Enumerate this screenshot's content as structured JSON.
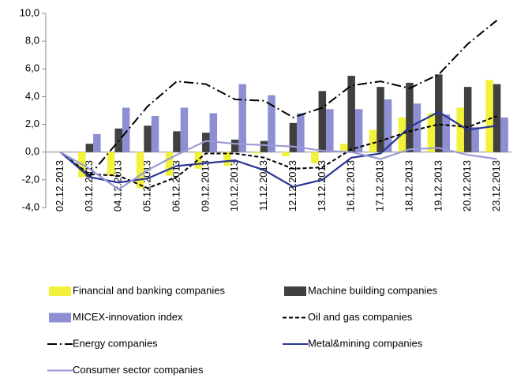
{
  "chart_data": {
    "type": "bar_line",
    "categories": [
      "02.12.2013",
      "03.12.2013",
      "04.12.2013",
      "05.12.2013",
      "06.12.2013",
      "09.12.2013",
      "10.12.2013",
      "11.12.2013",
      "12.12.2013",
      "13.12.2013",
      "16.12.2013",
      "17.12.2013",
      "18.12.2013",
      "19.12.2013",
      "20.12.2013",
      "23.12.2013"
    ],
    "ylim": [
      -4,
      10
    ],
    "yticks": [
      {
        "value": -4,
        "label": "-4,0"
      },
      {
        "value": -2,
        "label": "-2,0"
      },
      {
        "value": 0,
        "label": "0,0"
      },
      {
        "value": 2,
        "label": "2,0"
      },
      {
        "value": 4,
        "label": "4,0"
      },
      {
        "value": 6,
        "label": "6,0"
      },
      {
        "value": 8,
        "label": "8,0"
      },
      {
        "value": 10,
        "label": "10,0"
      }
    ],
    "series": [
      {
        "name": "Financial and banking companies",
        "kind": "bar",
        "color": "#f2f23a",
        "values": [
          0,
          -1.8,
          -1.7,
          -2.6,
          -1.7,
          -1.2,
          -1.0,
          -0.1,
          -0.3,
          -0.8,
          0.6,
          1.6,
          2.5,
          2.8,
          3.2,
          5.2
        ]
      },
      {
        "name": "Machine building companies",
        "kind": "bar",
        "color": "#404040",
        "values": [
          0,
          0.6,
          1.7,
          1.9,
          1.5,
          1.4,
          0.9,
          0.8,
          2.1,
          4.4,
          5.5,
          4.7,
          5.0,
          5.6,
          4.7,
          4.9
        ]
      },
      {
        "name": "MICEX-innovation index",
        "kind": "bar",
        "color": "#8d8fd2",
        "values": [
          0,
          1.3,
          3.2,
          2.6,
          3.2,
          2.8,
          4.9,
          4.1,
          2.8,
          3.1,
          3.1,
          3.8,
          3.5,
          2.7,
          1.8,
          2.5
        ]
      },
      {
        "name": "Oil and gas companies",
        "kind": "line",
        "style": "dashed",
        "color": "#000000",
        "values": [
          0,
          -1.6,
          -1.7,
          -2.6,
          -1.8,
          -0.1,
          -0.1,
          -0.4,
          -1.2,
          -1.1,
          0.2,
          0.8,
          1.5,
          2.0,
          1.8,
          2.6
        ]
      },
      {
        "name": "Energy companies",
        "kind": "line",
        "style": "dashdot",
        "color": "#000000",
        "values": [
          0,
          -1.7,
          0.8,
          3.3,
          5.1,
          4.9,
          3.8,
          3.7,
          2.5,
          3.2,
          4.8,
          5.1,
          4.6,
          5.6,
          7.8,
          9.5
        ]
      },
      {
        "name": "Metal&mining companies",
        "kind": "line",
        "style": "solid",
        "color": "#283593",
        "values": [
          0,
          -1.8,
          -2.2,
          -1.9,
          -1.0,
          -0.8,
          -0.6,
          -1.3,
          -2.5,
          -2.0,
          -0.4,
          -0.1,
          1.8,
          2.9,
          1.6,
          1.9
        ]
      },
      {
        "name": "Consumer sector companies",
        "kind": "line",
        "style": "solid",
        "color": "#9a9ad8",
        "values": [
          0,
          -1.2,
          -2.7,
          -1.3,
          -0.2,
          0.8,
          0.6,
          0.5,
          0.4,
          0.1,
          0.0,
          -0.5,
          0.2,
          0.3,
          -0.2,
          -0.5
        ]
      }
    ]
  }
}
